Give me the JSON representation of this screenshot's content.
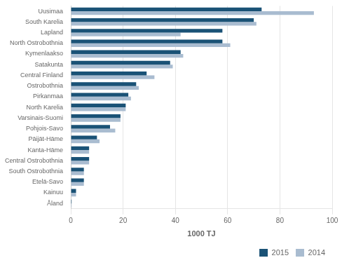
{
  "chart_data": {
    "type": "bar",
    "orientation": "horizontal",
    "categories": [
      "Uusimaa",
      "South Karelia",
      "Lapland",
      "North Ostrobothnia",
      "Kymenlaakso",
      "Satakunta",
      "Central Finland",
      "Ostrobothnia",
      "Pirkanmaa",
      "North Karelia",
      "Varsinais-Suomi",
      "Pohjois-Savo",
      "Päijät-Häme",
      "Kanta-Häme",
      "Central Ostrobothnia",
      "South Ostrobothnia",
      "Etelä-Savo",
      "Kainuu",
      "Åland"
    ],
    "series": [
      {
        "name": "2015",
        "color": "#1a5276",
        "values": [
          73,
          70,
          58,
          58,
          42,
          38,
          29,
          25,
          22,
          21,
          19,
          15,
          10,
          7,
          7,
          5,
          5,
          2,
          0.3
        ]
      },
      {
        "name": "2014",
        "color": "#a9bcd0",
        "values": [
          93,
          71,
          42,
          61,
          43,
          39,
          32,
          26,
          23,
          21,
          19,
          17,
          11,
          7,
          7,
          5,
          5,
          2,
          0.3
        ]
      }
    ],
    "xlim": [
      0,
      100
    ],
    "xticks": [
      0,
      20,
      40,
      60,
      80,
      100
    ],
    "xlabel": "1000 TJ",
    "grid": true,
    "legend": "lower right"
  }
}
